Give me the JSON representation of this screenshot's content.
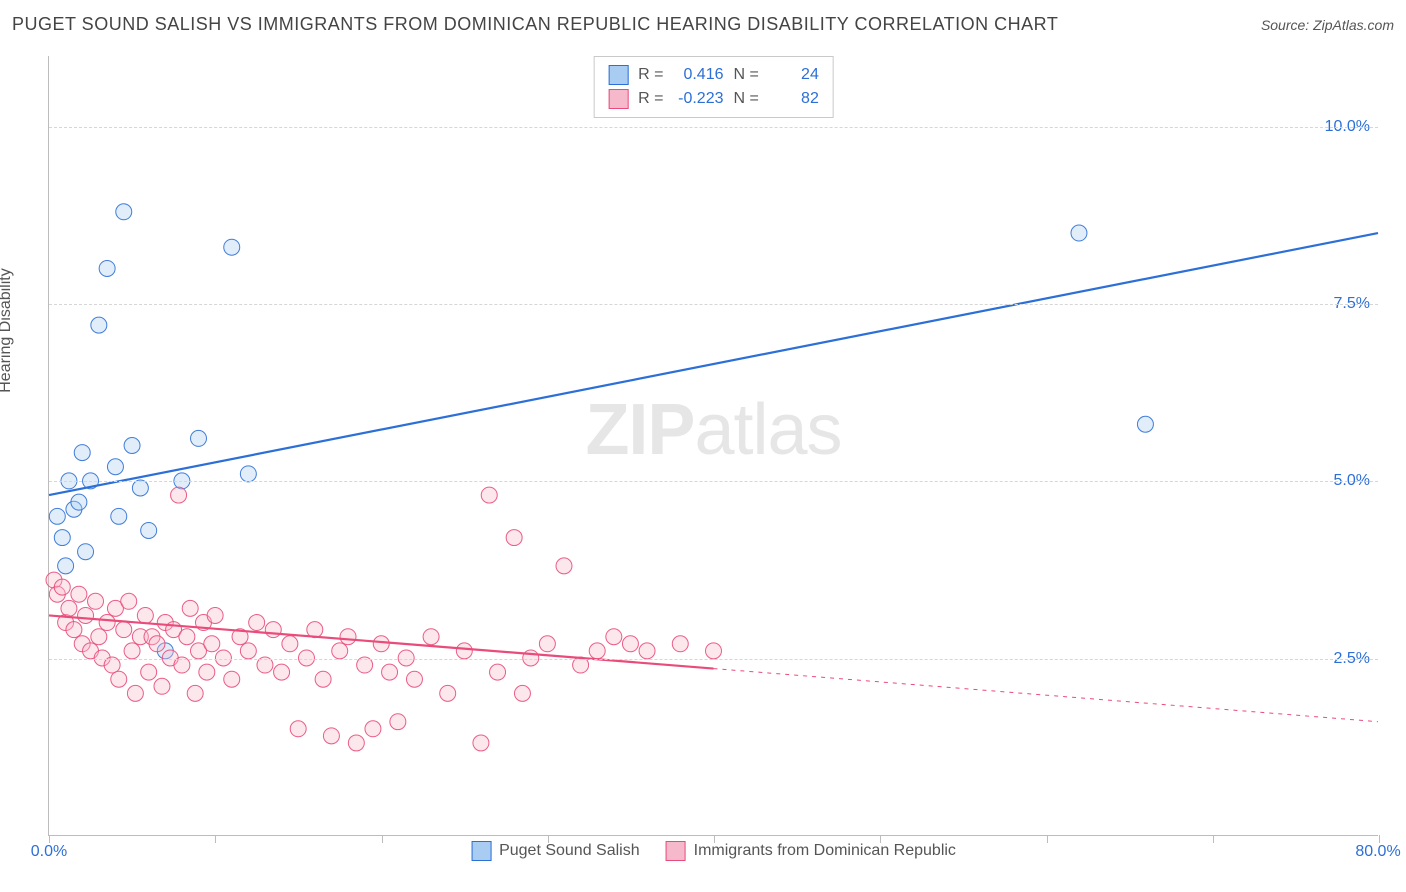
{
  "title": "PUGET SOUND SALISH VS IMMIGRANTS FROM DOMINICAN REPUBLIC HEARING DISABILITY CORRELATION CHART",
  "source": "Source: ZipAtlas.com",
  "ylabel": "Hearing Disability",
  "watermark_bold": "ZIP",
  "watermark_light": "atlas",
  "chart": {
    "type": "scatter",
    "xlim": [
      0,
      80
    ],
    "ylim": [
      0,
      11
    ],
    "x_min_label": "0.0%",
    "x_max_label": "80.0%",
    "xtick_marks": [
      0,
      10,
      20,
      30,
      40,
      50,
      60,
      70,
      80
    ],
    "ytick_grid": [
      2.5,
      5.0,
      7.5,
      10.0
    ],
    "background_color": "#ffffff",
    "grid_color": "#d6d6d6",
    "axis_color": "#bcbcbc",
    "tick_label_color": "#2c6fd6",
    "marker_radius": 8,
    "marker_fill_opacity": 0.35,
    "marker_stroke_opacity": 0.9,
    "line_width": 2.2
  },
  "series": [
    {
      "id": "salish",
      "label": "Puget Sound Salish",
      "color": "#2c6fd6",
      "fill": "#a9cdf2",
      "R_label": "R =",
      "R": "0.416",
      "N_label": "N =",
      "N": "24",
      "trend": {
        "x1": 0,
        "y1": 4.8,
        "x2": 80,
        "y2": 8.5,
        "solid_to_x": 80
      },
      "points": [
        [
          0.5,
          4.5
        ],
        [
          1.0,
          3.8
        ],
        [
          1.2,
          5.0
        ],
        [
          1.5,
          4.6
        ],
        [
          2.0,
          5.4
        ],
        [
          2.5,
          5.0
        ],
        [
          3.0,
          7.2
        ],
        [
          3.5,
          8.0
        ],
        [
          4.0,
          5.2
        ],
        [
          4.5,
          8.8
        ],
        [
          5.0,
          5.5
        ],
        [
          6.0,
          4.3
        ],
        [
          7.0,
          2.6
        ],
        [
          8.0,
          5.0
        ],
        [
          9.0,
          5.6
        ],
        [
          11.0,
          8.3
        ],
        [
          12.0,
          5.1
        ],
        [
          62.0,
          8.5
        ],
        [
          66.0,
          5.8
        ],
        [
          0.8,
          4.2
        ],
        [
          1.8,
          4.7
        ],
        [
          2.2,
          4.0
        ],
        [
          4.2,
          4.5
        ],
        [
          5.5,
          4.9
        ]
      ]
    },
    {
      "id": "dominican",
      "label": "Immigrants from Dominican Republic",
      "color": "#e94b7a",
      "fill": "#f6b9cc",
      "R_label": "R =",
      "R": "-0.223",
      "N_label": "N =",
      "N": "82",
      "trend": {
        "x1": 0,
        "y1": 3.1,
        "x2": 80,
        "y2": 1.6,
        "solid_to_x": 40
      },
      "points": [
        [
          0.3,
          3.6
        ],
        [
          0.5,
          3.4
        ],
        [
          0.8,
          3.5
        ],
        [
          1.0,
          3.0
        ],
        [
          1.2,
          3.2
        ],
        [
          1.5,
          2.9
        ],
        [
          1.8,
          3.4
        ],
        [
          2.0,
          2.7
        ],
        [
          2.2,
          3.1
        ],
        [
          2.5,
          2.6
        ],
        [
          2.8,
          3.3
        ],
        [
          3.0,
          2.8
        ],
        [
          3.2,
          2.5
        ],
        [
          3.5,
          3.0
        ],
        [
          3.8,
          2.4
        ],
        [
          4.0,
          3.2
        ],
        [
          4.2,
          2.2
        ],
        [
          4.5,
          2.9
        ],
        [
          4.8,
          3.3
        ],
        [
          5.0,
          2.6
        ],
        [
          5.2,
          2.0
        ],
        [
          5.5,
          2.8
        ],
        [
          5.8,
          3.1
        ],
        [
          6.0,
          2.3
        ],
        [
          6.2,
          2.8
        ],
        [
          6.5,
          2.7
        ],
        [
          6.8,
          2.1
        ],
        [
          7.0,
          3.0
        ],
        [
          7.3,
          2.5
        ],
        [
          7.5,
          2.9
        ],
        [
          7.8,
          4.8
        ],
        [
          8.0,
          2.4
        ],
        [
          8.3,
          2.8
        ],
        [
          8.5,
          3.2
        ],
        [
          8.8,
          2.0
        ],
        [
          9.0,
          2.6
        ],
        [
          9.3,
          3.0
        ],
        [
          9.5,
          2.3
        ],
        [
          9.8,
          2.7
        ],
        [
          10.0,
          3.1
        ],
        [
          10.5,
          2.5
        ],
        [
          11.0,
          2.2
        ],
        [
          11.5,
          2.8
        ],
        [
          12.0,
          2.6
        ],
        [
          12.5,
          3.0
        ],
        [
          13.0,
          2.4
        ],
        [
          13.5,
          2.9
        ],
        [
          14.0,
          2.3
        ],
        [
          14.5,
          2.7
        ],
        [
          15.0,
          1.5
        ],
        [
          15.5,
          2.5
        ],
        [
          16.0,
          2.9
        ],
        [
          16.5,
          2.2
        ],
        [
          17.0,
          1.4
        ],
        [
          17.5,
          2.6
        ],
        [
          18.0,
          2.8
        ],
        [
          18.5,
          1.3
        ],
        [
          19.0,
          2.4
        ],
        [
          19.5,
          1.5
        ],
        [
          20.0,
          2.7
        ],
        [
          20.5,
          2.3
        ],
        [
          21.0,
          1.6
        ],
        [
          21.5,
          2.5
        ],
        [
          22.0,
          2.2
        ],
        [
          23.0,
          2.8
        ],
        [
          24.0,
          2.0
        ],
        [
          25.0,
          2.6
        ],
        [
          26.0,
          1.3
        ],
        [
          26.5,
          4.8
        ],
        [
          27.0,
          2.3
        ],
        [
          28.0,
          4.2
        ],
        [
          28.5,
          2.0
        ],
        [
          29.0,
          2.5
        ],
        [
          30.0,
          2.7
        ],
        [
          31.0,
          3.8
        ],
        [
          32.0,
          2.4
        ],
        [
          33.0,
          2.6
        ],
        [
          34.0,
          2.8
        ],
        [
          35.0,
          2.7
        ],
        [
          36.0,
          2.6
        ],
        [
          38.0,
          2.7
        ],
        [
          40.0,
          2.6
        ]
      ]
    }
  ]
}
